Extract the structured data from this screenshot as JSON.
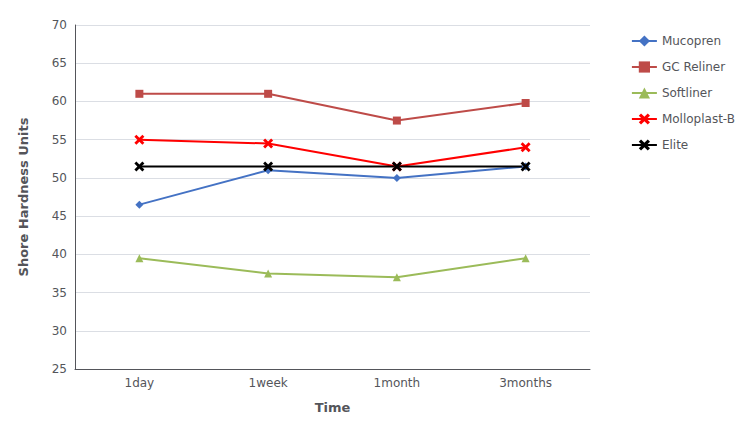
{
  "chart_data": {
    "type": "line",
    "xlabel": "Time",
    "ylabel": "Shore Hardness Units",
    "categories": [
      "1day",
      "1week",
      "1month",
      "3months"
    ],
    "series": [
      {
        "name": "Mucopren",
        "color": "#4472C4",
        "marker": "diamond",
        "values": [
          46.5,
          51.0,
          50.0,
          51.5
        ]
      },
      {
        "name": "GC Reliner",
        "color": "#BE4B48",
        "marker": "square",
        "values": [
          61.0,
          61.0,
          57.5,
          59.8
        ]
      },
      {
        "name": "Softliner",
        "color": "#9BBB59",
        "marker": "triangle",
        "values": [
          39.5,
          37.5,
          37.0,
          39.5
        ]
      },
      {
        "name": "Molloplast-B",
        "color": "#FF0000",
        "marker": "x",
        "values": [
          55.0,
          54.5,
          51.5,
          54.0
        ]
      },
      {
        "name": "Elite",
        "color": "#000000",
        "marker": "x",
        "values": [
          51.5,
          51.5,
          51.5,
          51.5
        ]
      }
    ],
    "ylim": [
      25,
      70
    ],
    "yticks": [
      25,
      30,
      35,
      40,
      45,
      50,
      55,
      60,
      65,
      70
    ],
    "grid": true,
    "legend": "upper right"
  }
}
